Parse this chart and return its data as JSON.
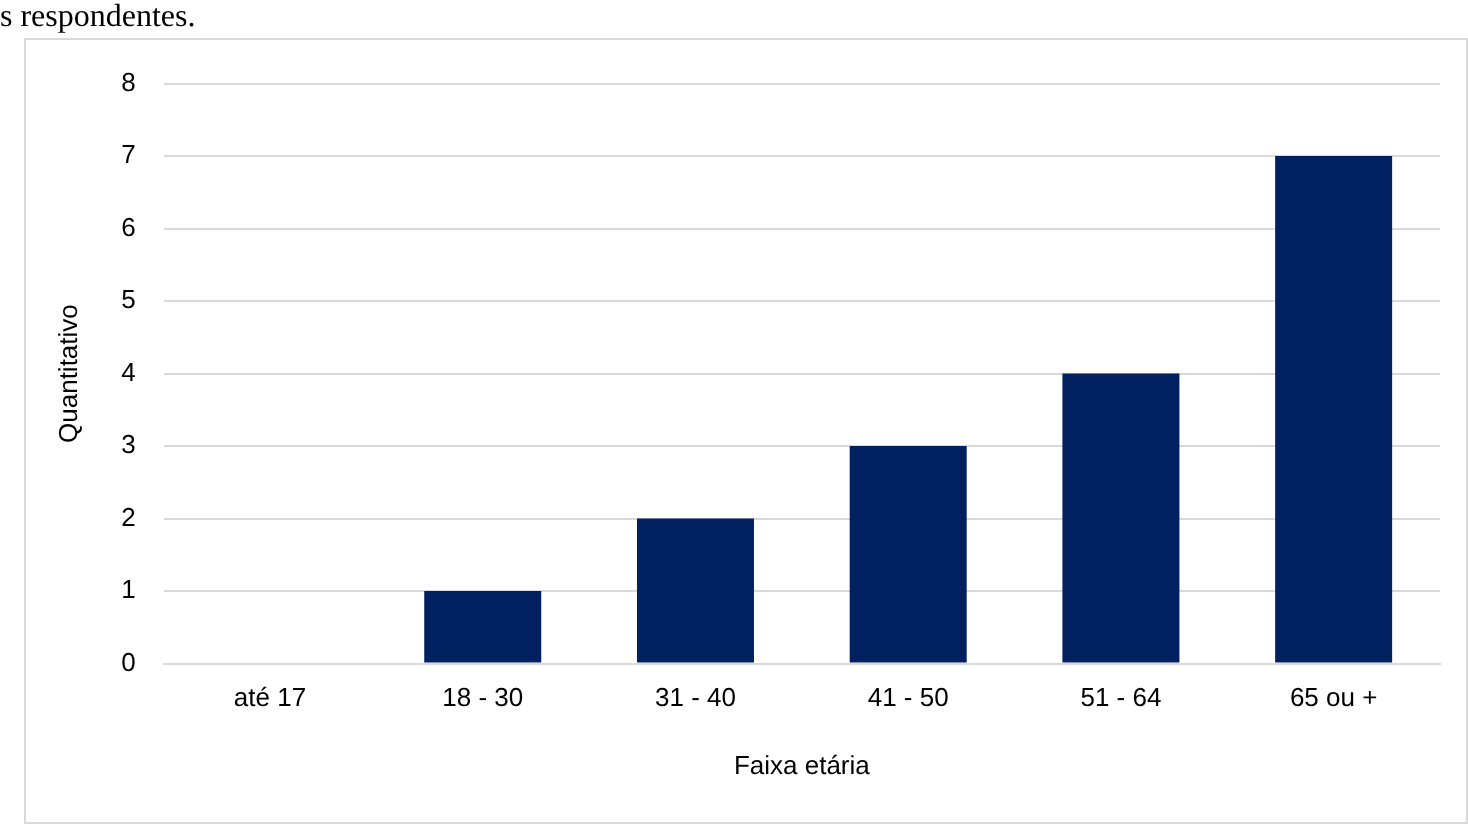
{
  "chart_data": {
    "type": "bar",
    "xlabel": "Faixa etária",
    "ylabel": "Quantitativo",
    "categories": [
      "até 17",
      "18 - 30",
      "31 - 40",
      "41 - 50",
      "51 - 64",
      "65 ou +"
    ],
    "values": [
      0,
      1,
      2,
      3,
      4,
      7
    ],
    "color": "#002060",
    "ylim": [
      0,
      8
    ],
    "yticks": [
      0,
      1,
      2,
      3,
      4,
      5,
      6,
      7,
      8
    ],
    "grid": "y",
    "legend": false,
    "annotations": [
      "s respondentes."
    ]
  }
}
